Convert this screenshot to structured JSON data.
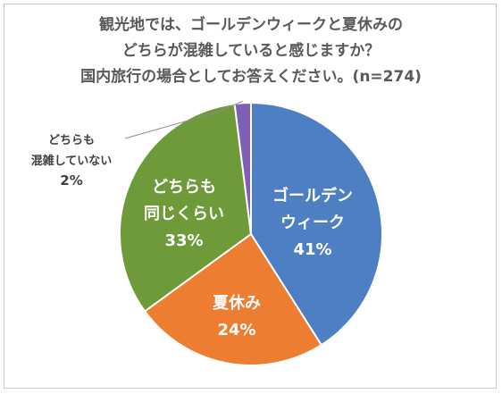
{
  "chart_data": {
    "type": "pie",
    "title_lines": [
      "観光地では、ゴールデンウィークと夏休みの",
      "どちらが混雑していると感じますか？",
      "国内旅行の場合としてお答えください。(n=274)"
    ],
    "slices": [
      {
        "label_lines": [
          "ゴールデン",
          "ウィーク"
        ],
        "value": 41,
        "value_label": "41%",
        "color": "#4e7fc2"
      },
      {
        "label_lines": [
          "夏休み"
        ],
        "value": 24,
        "value_label": "24%",
        "color": "#ed7d31"
      },
      {
        "label_lines": [
          "どちらも",
          "同じくらい"
        ],
        "value": 33,
        "value_label": "33%",
        "color": "#6f9a3a"
      },
      {
        "label_lines": [
          "どちらも",
          "混雑していない"
        ],
        "value": 2,
        "value_label": "2%",
        "color": "#7f5fb3"
      }
    ]
  }
}
